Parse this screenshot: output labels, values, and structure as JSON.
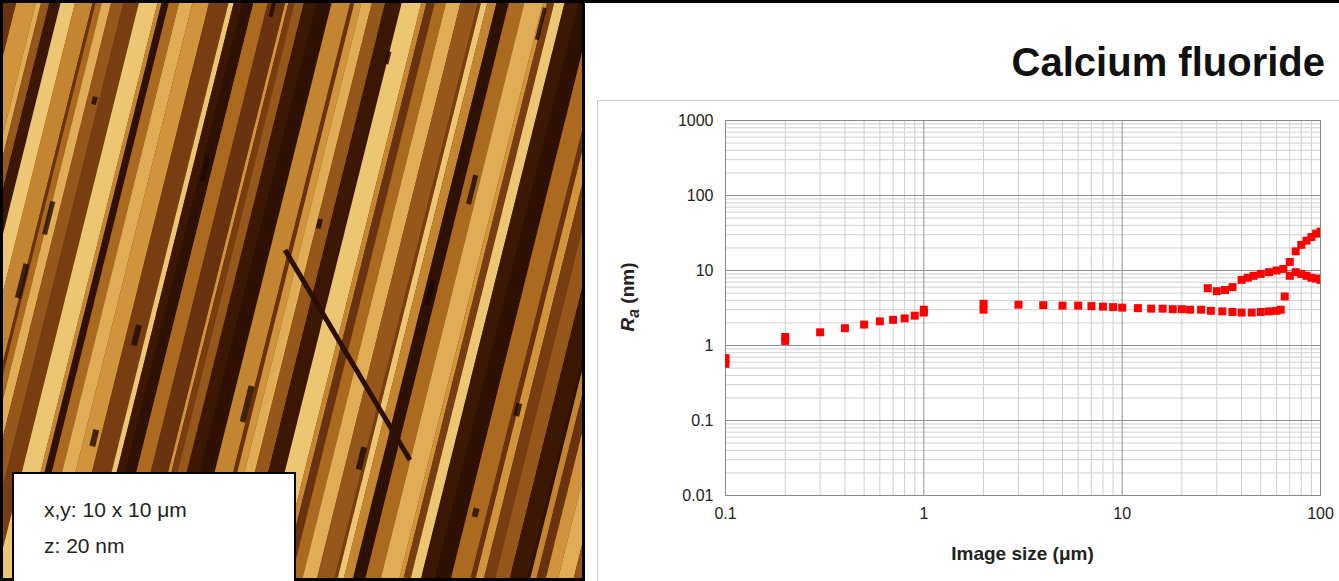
{
  "chart_data": {
    "type": "scatter",
    "title": "Calcium fluoride",
    "x_label": "Image size (μm)",
    "y_label": "Ra (nm)",
    "annotations": [
      "x,y: 10 x 10 μm",
      "z: 20 nm"
    ],
    "log": true,
    "grid": true,
    "xlim": [
      0.1,
      100
    ],
    "ylim": [
      0.01,
      1000
    ],
    "xticks": [
      0.1,
      1,
      10,
      100
    ],
    "yticks": [
      0.01,
      0.1,
      1,
      10,
      100,
      1000
    ],
    "color": "#ff0000",
    "marker": "square",
    "x": [
      0.1,
      0.1,
      0.2,
      0.2,
      0.3,
      0.4,
      0.5,
      0.6,
      0.7,
      0.8,
      0.9,
      1,
      1,
      2,
      2,
      3,
      4,
      5,
      6,
      7,
      8,
      9,
      10,
      12,
      14,
      16,
      18,
      20,
      22,
      25,
      28,
      32,
      36,
      40,
      45,
      50,
      55,
      60,
      63,
      66,
      70,
      75,
      80,
      85,
      90,
      95,
      100,
      27,
      30,
      33,
      36,
      40,
      43,
      46,
      50,
      55,
      60,
      65,
      70,
      75,
      80,
      85,
      90,
      95,
      100
    ],
    "values": [
      0.57,
      0.68,
      1.15,
      1.3,
      1.5,
      1.7,
      1.9,
      2.1,
      2.2,
      2.3,
      2.5,
      2.75,
      3.0,
      3.0,
      3.6,
      3.5,
      3.45,
      3.4,
      3.4,
      3.35,
      3.3,
      3.25,
      3.2,
      3.15,
      3.1,
      3.1,
      3.05,
      3.05,
      3.0,
      3.0,
      2.9,
      2.85,
      2.8,
      2.75,
      2.75,
      2.8,
      2.85,
      2.9,
      3.0,
      4.5,
      8.5,
      9.5,
      9.0,
      8.5,
      8.0,
      7.8,
      7.5,
      5.8,
      5.3,
      5.5,
      6.0,
      7.5,
      8.0,
      8.5,
      9.0,
      9.5,
      10,
      10.5,
      13,
      18,
      22,
      25,
      28,
      31,
      33
    ]
  }
}
